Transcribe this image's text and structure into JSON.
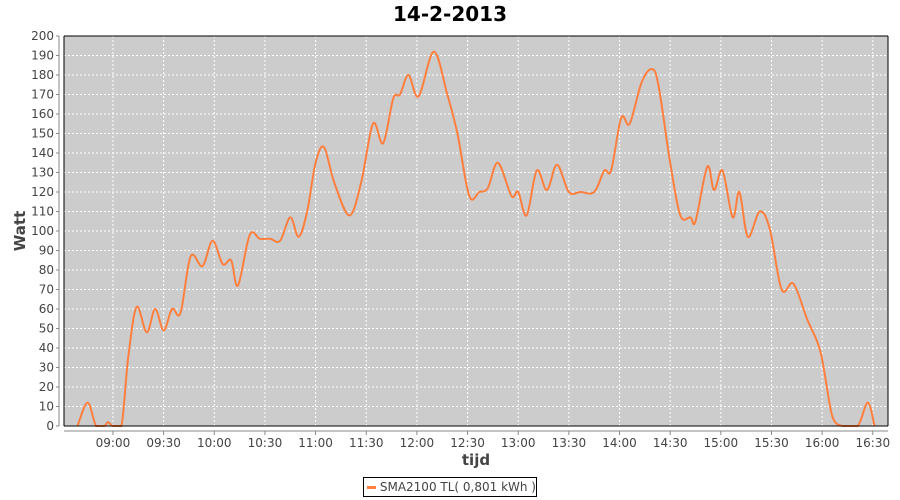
{
  "chart_data": {
    "type": "line",
    "title": "14-2-2013",
    "xlabel": "tijd",
    "ylabel": "Watt",
    "ylim": [
      0,
      200
    ],
    "xlim": [
      "08:31",
      "16:39"
    ],
    "yticks": [
      0,
      10,
      20,
      30,
      40,
      50,
      60,
      70,
      80,
      90,
      100,
      110,
      120,
      130,
      140,
      150,
      160,
      170,
      180,
      190,
      200
    ],
    "xticks": [
      "09:00",
      "09:30",
      "10:00",
      "10:30",
      "11:00",
      "11:30",
      "12:00",
      "12:30",
      "13:00",
      "13:30",
      "14:00",
      "14:30",
      "15:00",
      "15:30",
      "16:00",
      "16:30"
    ],
    "grid": true,
    "legend_position": "bottom",
    "colors": {
      "series": "#ff7f3f",
      "plot_background": "#cccccc",
      "grid": "#ffffff"
    },
    "series": [
      {
        "name": "SMA2100 TL( 0,801 kWh )",
        "x": [
          "08:39",
          "08:45",
          "08:50",
          "08:55",
          "08:57",
          "09:00",
          "09:05",
          "09:09",
          "09:14",
          "09:20",
          "09:25",
          "09:30",
          "09:35",
          "09:40",
          "09:46",
          "09:53",
          "09:59",
          "10:05",
          "10:10",
          "10:14",
          "10:21",
          "10:27",
          "10:33",
          "10:39",
          "10:45",
          "10:50",
          "10:55",
          "11:00",
          "11:05",
          "11:11",
          "11:20",
          "11:27",
          "11:34",
          "11:40",
          "11:46",
          "11:50",
          "11:55",
          "12:01",
          "12:10",
          "12:18",
          "12:24",
          "12:31",
          "12:37",
          "12:42",
          "12:48",
          "12:56",
          "13:00",
          "13:05",
          "13:11",
          "13:17",
          "13:23",
          "13:30",
          "13:37",
          "13:45",
          "13:51",
          "13:55",
          "14:01",
          "14:06",
          "14:13",
          "14:19",
          "14:23",
          "14:30",
          "14:36",
          "14:42",
          "14:45",
          "14:52",
          "14:56",
          "15:01",
          "15:07",
          "15:11",
          "15:16",
          "15:23",
          "15:29",
          "15:36",
          "15:43",
          "15:51",
          "15:59",
          "16:06",
          "16:12",
          "16:21",
          "16:27",
          "16:31"
        ],
        "values": [
          0,
          12,
          0,
          0,
          2,
          0,
          0,
          35,
          61,
          48,
          60,
          49,
          60,
          58,
          87,
          82,
          95,
          83,
          85,
          72,
          98,
          96,
          96,
          95,
          107,
          97,
          110,
          135,
          143,
          125,
          108,
          125,
          155,
          145,
          168,
          170,
          180,
          169,
          192,
          170,
          150,
          118,
          120,
          122,
          135,
          118,
          120,
          108,
          131,
          121,
          134,
          120,
          120,
          120,
          131,
          131,
          158,
          155,
          176,
          183,
          175,
          135,
          108,
          107,
          105,
          133,
          121,
          131,
          107,
          120,
          97,
          110,
          101,
          70,
          73,
          55,
          38,
          5,
          0,
          0,
          12,
          0
        ]
      }
    ]
  }
}
